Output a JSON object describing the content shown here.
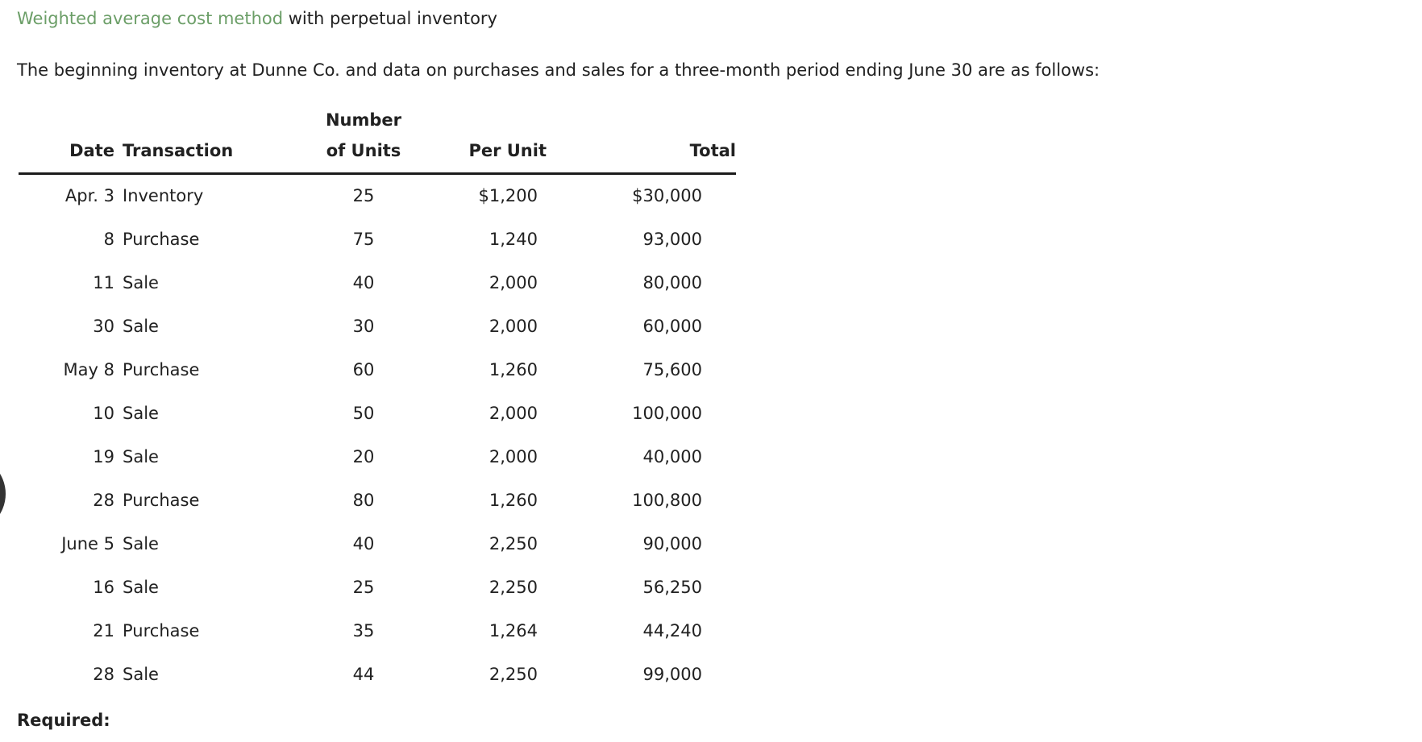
{
  "page": {
    "title": {
      "highlight": "Weighted average cost method",
      "rest": " with perpetual inventory"
    },
    "intro": "The beginning inventory at Dunne Co. and data on purchases and sales for a three-month period ending June 30 are as follows:",
    "required_label": "Required:"
  },
  "table": {
    "headers": {
      "date": "Date",
      "transaction": "Transaction",
      "units_line1": "Number",
      "units_line2": "of Units",
      "per_unit": "Per Unit",
      "total": "Total"
    },
    "rows": [
      {
        "date": "Apr. 3",
        "transaction": "Inventory",
        "units": "25",
        "per_unit": "$1,200",
        "total": "$30,000"
      },
      {
        "date": "8",
        "transaction": "Purchase",
        "units": "75",
        "per_unit": "1,240",
        "total": "93,000"
      },
      {
        "date": "11",
        "transaction": "Sale",
        "units": "40",
        "per_unit": "2,000",
        "total": "80,000"
      },
      {
        "date": "30",
        "transaction": "Sale",
        "units": "30",
        "per_unit": "2,000",
        "total": "60,000"
      },
      {
        "date": "May 8",
        "transaction": "Purchase",
        "units": "60",
        "per_unit": "1,260",
        "total": "75,600"
      },
      {
        "date": "10",
        "transaction": "Sale",
        "units": "50",
        "per_unit": "2,000",
        "total": "100,000"
      },
      {
        "date": "19",
        "transaction": "Sale",
        "units": "20",
        "per_unit": "2,000",
        "total": "40,000"
      },
      {
        "date": "28",
        "transaction": "Purchase",
        "units": "80",
        "per_unit": "1,260",
        "total": "100,800"
      },
      {
        "date": "June 5",
        "transaction": "Sale",
        "units": "40",
        "per_unit": "2,250",
        "total": "90,000"
      },
      {
        "date": "16",
        "transaction": "Sale",
        "units": "25",
        "per_unit": "2,250",
        "total": "56,250"
      },
      {
        "date": "21",
        "transaction": "Purchase",
        "units": "35",
        "per_unit": "1,264",
        "total": "44,240"
      },
      {
        "date": "28",
        "transaction": "Sale",
        "units": "44",
        "per_unit": "2,250",
        "total": "99,000"
      }
    ]
  },
  "colors": {
    "title_green": "#6b9e67",
    "text": "#212121",
    "rule": "#1b1b1b",
    "edge_circle": "#333333"
  }
}
